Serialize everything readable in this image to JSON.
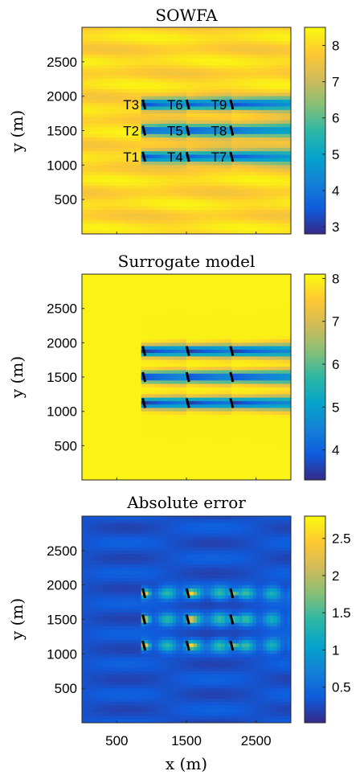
{
  "colors": {
    "parula": [
      "#352a87",
      "#0f5cdd",
      "#1481d6",
      "#06a4ca",
      "#2eb7a4",
      "#87bf77",
      "#d1bb59",
      "#fec832",
      "#f9fb0e"
    ]
  },
  "xaxis": {
    "label": "x (m)",
    "ticks": [
      "500",
      "1500",
      "2500"
    ],
    "tick_values": [
      500,
      1500,
      2500
    ],
    "range": [
      0,
      3000
    ]
  },
  "chart_data": [
    {
      "type": "heatmap",
      "title": "SOWFA",
      "ylabel": "y (m)",
      "yticks": [
        "500",
        "1000",
        "1500",
        "2000",
        "2500"
      ],
      "ytick_values": [
        500,
        1000,
        1500,
        2000,
        2500
      ],
      "ylim": [
        0,
        3000
      ],
      "xlim": [
        0,
        3000
      ],
      "colorbar": {
        "ticks": [
          "3",
          "4",
          "5",
          "6",
          "7",
          "8"
        ],
        "tick_values": [
          3,
          4,
          5,
          6,
          7,
          8
        ],
        "range": [
          2.8,
          8.5
        ]
      },
      "background_value": 8.0,
      "wake_min": 3.2,
      "wake_recovery": 6.0,
      "turbines": [
        {
          "name": "T1",
          "x": 890,
          "y": 1120
        },
        {
          "name": "T2",
          "x": 890,
          "y": 1500
        },
        {
          "name": "T3",
          "x": 890,
          "y": 1880
        },
        {
          "name": "T4",
          "x": 1520,
          "y": 1120
        },
        {
          "name": "T5",
          "x": 1520,
          "y": 1500
        },
        {
          "name": "T6",
          "x": 1520,
          "y": 1880
        },
        {
          "name": "T7",
          "x": 2150,
          "y": 1120
        },
        {
          "name": "T8",
          "x": 2150,
          "y": 1500
        },
        {
          "name": "T9",
          "x": 2150,
          "y": 1880
        }
      ],
      "show_turbine_labels": true
    },
    {
      "type": "heatmap",
      "title": "Surrogate model",
      "ylabel": "y (m)",
      "yticks": [
        "500",
        "1000",
        "1500",
        "2000",
        "2500"
      ],
      "ytick_values": [
        500,
        1000,
        1500,
        2000,
        2500
      ],
      "ylim": [
        0,
        3000
      ],
      "xlim": [
        0,
        3000
      ],
      "colorbar": {
        "ticks": [
          "4",
          "5",
          "6",
          "7",
          "8"
        ],
        "tick_values": [
          4,
          5,
          6,
          7,
          8
        ],
        "range": [
          3.3,
          8.1
        ]
      },
      "background_value": 8.0,
      "wake_min": 3.4,
      "wake_recovery": 6.2,
      "turbines": [
        {
          "name": "T1",
          "x": 890,
          "y": 1120
        },
        {
          "name": "T2",
          "x": 890,
          "y": 1500
        },
        {
          "name": "T3",
          "x": 890,
          "y": 1880
        },
        {
          "name": "T4",
          "x": 1520,
          "y": 1120
        },
        {
          "name": "T5",
          "x": 1520,
          "y": 1500
        },
        {
          "name": "T6",
          "x": 1520,
          "y": 1880
        },
        {
          "name": "T7",
          "x": 2150,
          "y": 1120
        },
        {
          "name": "T8",
          "x": 2150,
          "y": 1500
        },
        {
          "name": "T9",
          "x": 2150,
          "y": 1880
        }
      ],
      "show_turbine_labels": false
    },
    {
      "type": "heatmap",
      "title": "Absolute error",
      "ylabel": "y (m)",
      "yticks": [
        "500",
        "1000",
        "1500",
        "2000",
        "2500"
      ],
      "ytick_values": [
        500,
        1000,
        1500,
        2000,
        2500
      ],
      "ylim": [
        0,
        3000
      ],
      "xlim": [
        0,
        3000
      ],
      "colorbar": {
        "ticks": [
          "0.5",
          "1",
          "1.5",
          "2",
          "2.5"
        ],
        "tick_values": [
          0.5,
          1,
          1.5,
          2,
          2.5
        ],
        "range": [
          0.02,
          2.8
        ]
      },
      "background_value": 0.3,
      "wake_peak": 1.6,
      "turbines": [
        {
          "name": "T1",
          "x": 890,
          "y": 1120
        },
        {
          "name": "T2",
          "x": 890,
          "y": 1500
        },
        {
          "name": "T3",
          "x": 890,
          "y": 1880
        },
        {
          "name": "T4",
          "x": 1520,
          "y": 1120
        },
        {
          "name": "T5",
          "x": 1520,
          "y": 1500
        },
        {
          "name": "T6",
          "x": 1520,
          "y": 1880
        },
        {
          "name": "T7",
          "x": 2150,
          "y": 1120
        },
        {
          "name": "T8",
          "x": 2150,
          "y": 1500
        },
        {
          "name": "T9",
          "x": 2150,
          "y": 1880
        }
      ],
      "show_turbine_labels": false
    }
  ]
}
